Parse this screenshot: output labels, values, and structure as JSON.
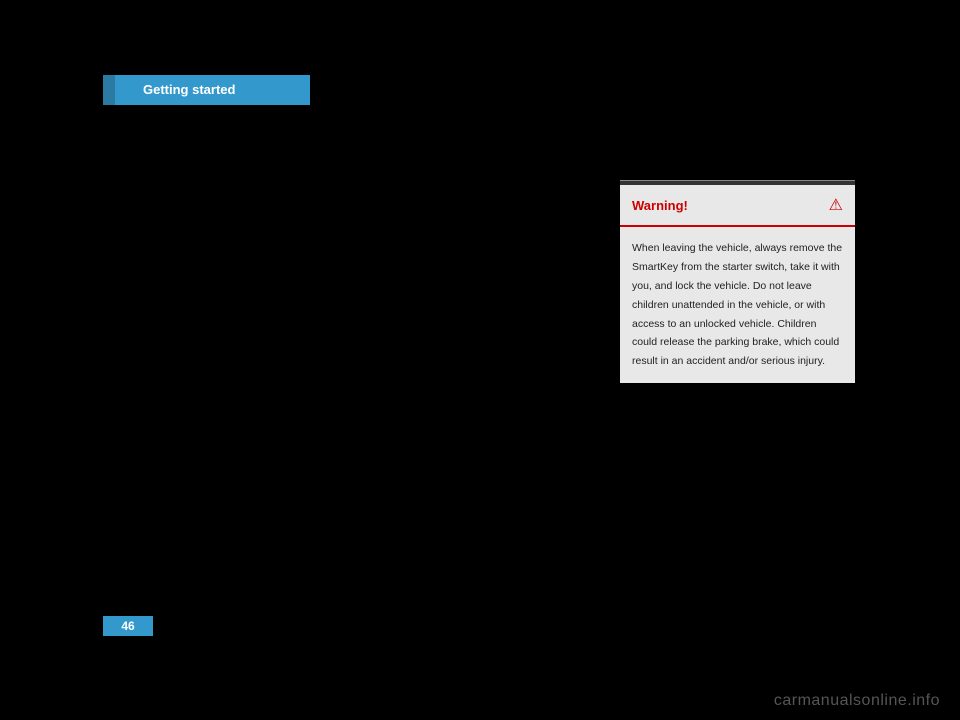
{
  "header": {
    "tab_label": "Getting started"
  },
  "warning_box": {
    "title": "Warning!",
    "icon_glyph": "⚠",
    "body_text": "When leaving the vehicle, always remove the SmartKey from the starter switch, take it with you, and lock the vehicle. Do not leave children unattended in the vehicle, or with access to an unlocked vehicle. Children could release the parking brake, which could result in an accident and/or serious injury.",
    "title_color": "#cc0000",
    "background_color": "#e8e8e8",
    "border_color": "#cc0000"
  },
  "footer": {
    "page_number": "46"
  },
  "watermark": {
    "text": "carmanualsonline.info"
  },
  "colors": {
    "tab_background": "#3399cc",
    "tab_edge": "#2a7aa3",
    "page_background": "#000000"
  }
}
